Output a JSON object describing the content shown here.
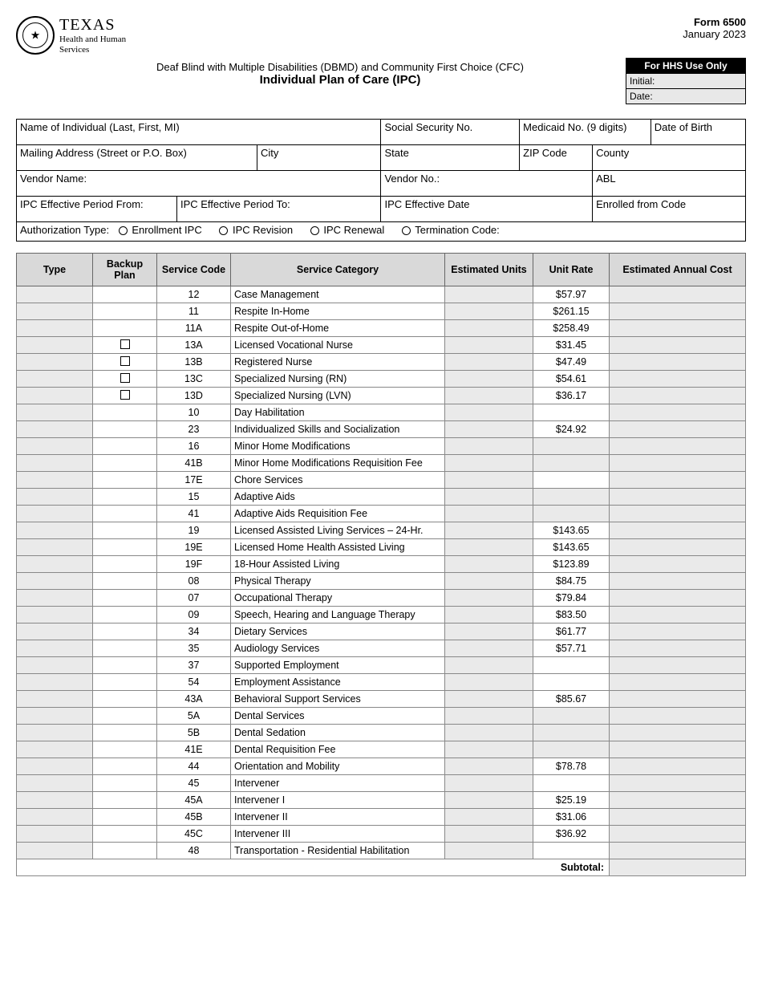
{
  "header": {
    "agency_line1": "TEXAS",
    "agency_line2": "Health and Human",
    "agency_line3": "Services",
    "form_no": "Form 6500",
    "form_date": "January 2023",
    "title_line1": "Deaf Blind with Multiple Disabilities (DBMD) and Community First Choice (CFC)",
    "title_line2": "Individual Plan of Care (IPC)",
    "hhs_box_title": "For HHS Use Only",
    "hhs_initial": "Initial:",
    "hhs_date": "Date:"
  },
  "info": {
    "name": "Name of Individual (Last, First, MI)",
    "ssn": "Social Security No.",
    "medicaid": "Medicaid No. (9 digits)",
    "dob": "Date of Birth",
    "mailing": "Mailing Address (Street or P.O. Box)",
    "city": "City",
    "state": "State",
    "zip": "ZIP Code",
    "county": "County",
    "vendor_name": "Vendor Name:",
    "vendor_no": "Vendor No.:",
    "abl": "ABL",
    "ipc_from": "IPC Effective Period From:",
    "ipc_to": "IPC Effective Period To:",
    "ipc_eff": "IPC Effective Date",
    "enrolled": "Enrolled from Code",
    "auth_label": "Authorization Type:",
    "auth_opts": [
      "Enrollment IPC",
      "IPC Revision",
      "IPC Renewal",
      "Termination Code:"
    ]
  },
  "svc_headers": {
    "type": "Type",
    "backup": "Backup Plan",
    "code": "Service Code",
    "cat": "Service Category",
    "units": "Estimated Units",
    "rate": "Unit Rate",
    "cost": "Estimated Annual Cost"
  },
  "services": [
    {
      "code": "12",
      "cat": "Case Management",
      "rate": "$57.97",
      "backup": false,
      "shade_rate": false
    },
    {
      "code": "11",
      "cat": "Respite In-Home",
      "rate": "$261.15",
      "backup": false,
      "shade_rate": false
    },
    {
      "code": "11A",
      "cat": "Respite Out-of-Home",
      "rate": "$258.49",
      "backup": false,
      "shade_rate": false
    },
    {
      "code": "13A",
      "cat": "Licensed Vocational Nurse",
      "rate": "$31.45",
      "backup": true,
      "shade_rate": false
    },
    {
      "code": "13B",
      "cat": "Registered Nurse",
      "rate": "$47.49",
      "backup": true,
      "shade_rate": false
    },
    {
      "code": "13C",
      "cat": "Specialized Nursing (RN)",
      "rate": "$54.61",
      "backup": true,
      "shade_rate": false
    },
    {
      "code": "13D",
      "cat": "Specialized Nursing (LVN)",
      "rate": "$36.17",
      "backup": true,
      "shade_rate": false
    },
    {
      "code": "10",
      "cat": "Day Habilitation",
      "rate": "",
      "backup": false,
      "shade_rate": false
    },
    {
      "code": "23",
      "cat": "Individualized Skills and Socialization",
      "rate": "$24.92",
      "backup": false,
      "shade_rate": false
    },
    {
      "code": "16",
      "cat": "Minor Home Modifications",
      "rate": "",
      "backup": false,
      "shade_rate": true
    },
    {
      "code": "41B",
      "cat": "Minor Home Modifications Requisition Fee",
      "rate": "",
      "backup": false,
      "shade_rate": true
    },
    {
      "code": "17E",
      "cat": "Chore Services",
      "rate": "",
      "backup": false,
      "shade_rate": false
    },
    {
      "code": "15",
      "cat": "Adaptive Aids",
      "rate": "",
      "backup": false,
      "shade_rate": true
    },
    {
      "code": "41",
      "cat": "Adaptive Aids Requisition Fee",
      "rate": "",
      "backup": false,
      "shade_rate": true
    },
    {
      "code": "19",
      "cat": "Licensed Assisted Living Services – 24-Hr.",
      "rate": "$143.65",
      "backup": false,
      "shade_rate": false
    },
    {
      "code": "19E",
      "cat": "Licensed Home Health Assisted Living",
      "rate": "$143.65",
      "backup": false,
      "shade_rate": false
    },
    {
      "code": "19F",
      "cat": "18-Hour Assisted Living",
      "rate": "$123.89",
      "backup": false,
      "shade_rate": false
    },
    {
      "code": "08",
      "cat": "Physical Therapy",
      "rate": "$84.75",
      "backup": false,
      "shade_rate": false
    },
    {
      "code": "07",
      "cat": "Occupational Therapy",
      "rate": "$79.84",
      "backup": false,
      "shade_rate": false
    },
    {
      "code": "09",
      "cat": "Speech, Hearing and Language Therapy",
      "rate": "$83.50",
      "backup": false,
      "shade_rate": false
    },
    {
      "code": "34",
      "cat": "Dietary Services",
      "rate": "$61.77",
      "backup": false,
      "shade_rate": false
    },
    {
      "code": "35",
      "cat": "Audiology Services",
      "rate": "$57.71",
      "backup": false,
      "shade_rate": false
    },
    {
      "code": "37",
      "cat": "Supported Employment",
      "rate": "",
      "backup": false,
      "shade_rate": false
    },
    {
      "code": "54",
      "cat": "Employment Assistance",
      "rate": "",
      "backup": false,
      "shade_rate": false
    },
    {
      "code": "43A",
      "cat": "Behavioral Support Services",
      "rate": "$85.67",
      "backup": false,
      "shade_rate": false
    },
    {
      "code": "5A",
      "cat": "Dental Services",
      "rate": "",
      "backup": false,
      "shade_rate": true
    },
    {
      "code": "5B",
      "cat": "Dental Sedation",
      "rate": "",
      "backup": false,
      "shade_rate": true
    },
    {
      "code": "41E",
      "cat": "Dental Requisition Fee",
      "rate": "",
      "backup": false,
      "shade_rate": true
    },
    {
      "code": "44",
      "cat": "Orientation and Mobility",
      "rate": "$78.78",
      "backup": false,
      "shade_rate": false
    },
    {
      "code": "45",
      "cat": "Intervener",
      "rate": "",
      "backup": false,
      "shade_rate": false
    },
    {
      "code": "45A",
      "cat": "Intervener I",
      "rate": "$25.19",
      "backup": false,
      "shade_rate": false
    },
    {
      "code": "45B",
      "cat": "Intervener II",
      "rate": "$31.06",
      "backup": false,
      "shade_rate": false
    },
    {
      "code": "45C",
      "cat": "Intervener III",
      "rate": "$36.92",
      "backup": false,
      "shade_rate": false
    },
    {
      "code": "48",
      "cat": "Transportation -  Residential Habilitation",
      "rate": "",
      "backup": false,
      "shade_rate": false
    }
  ],
  "subtotal_label": "Subtotal:"
}
